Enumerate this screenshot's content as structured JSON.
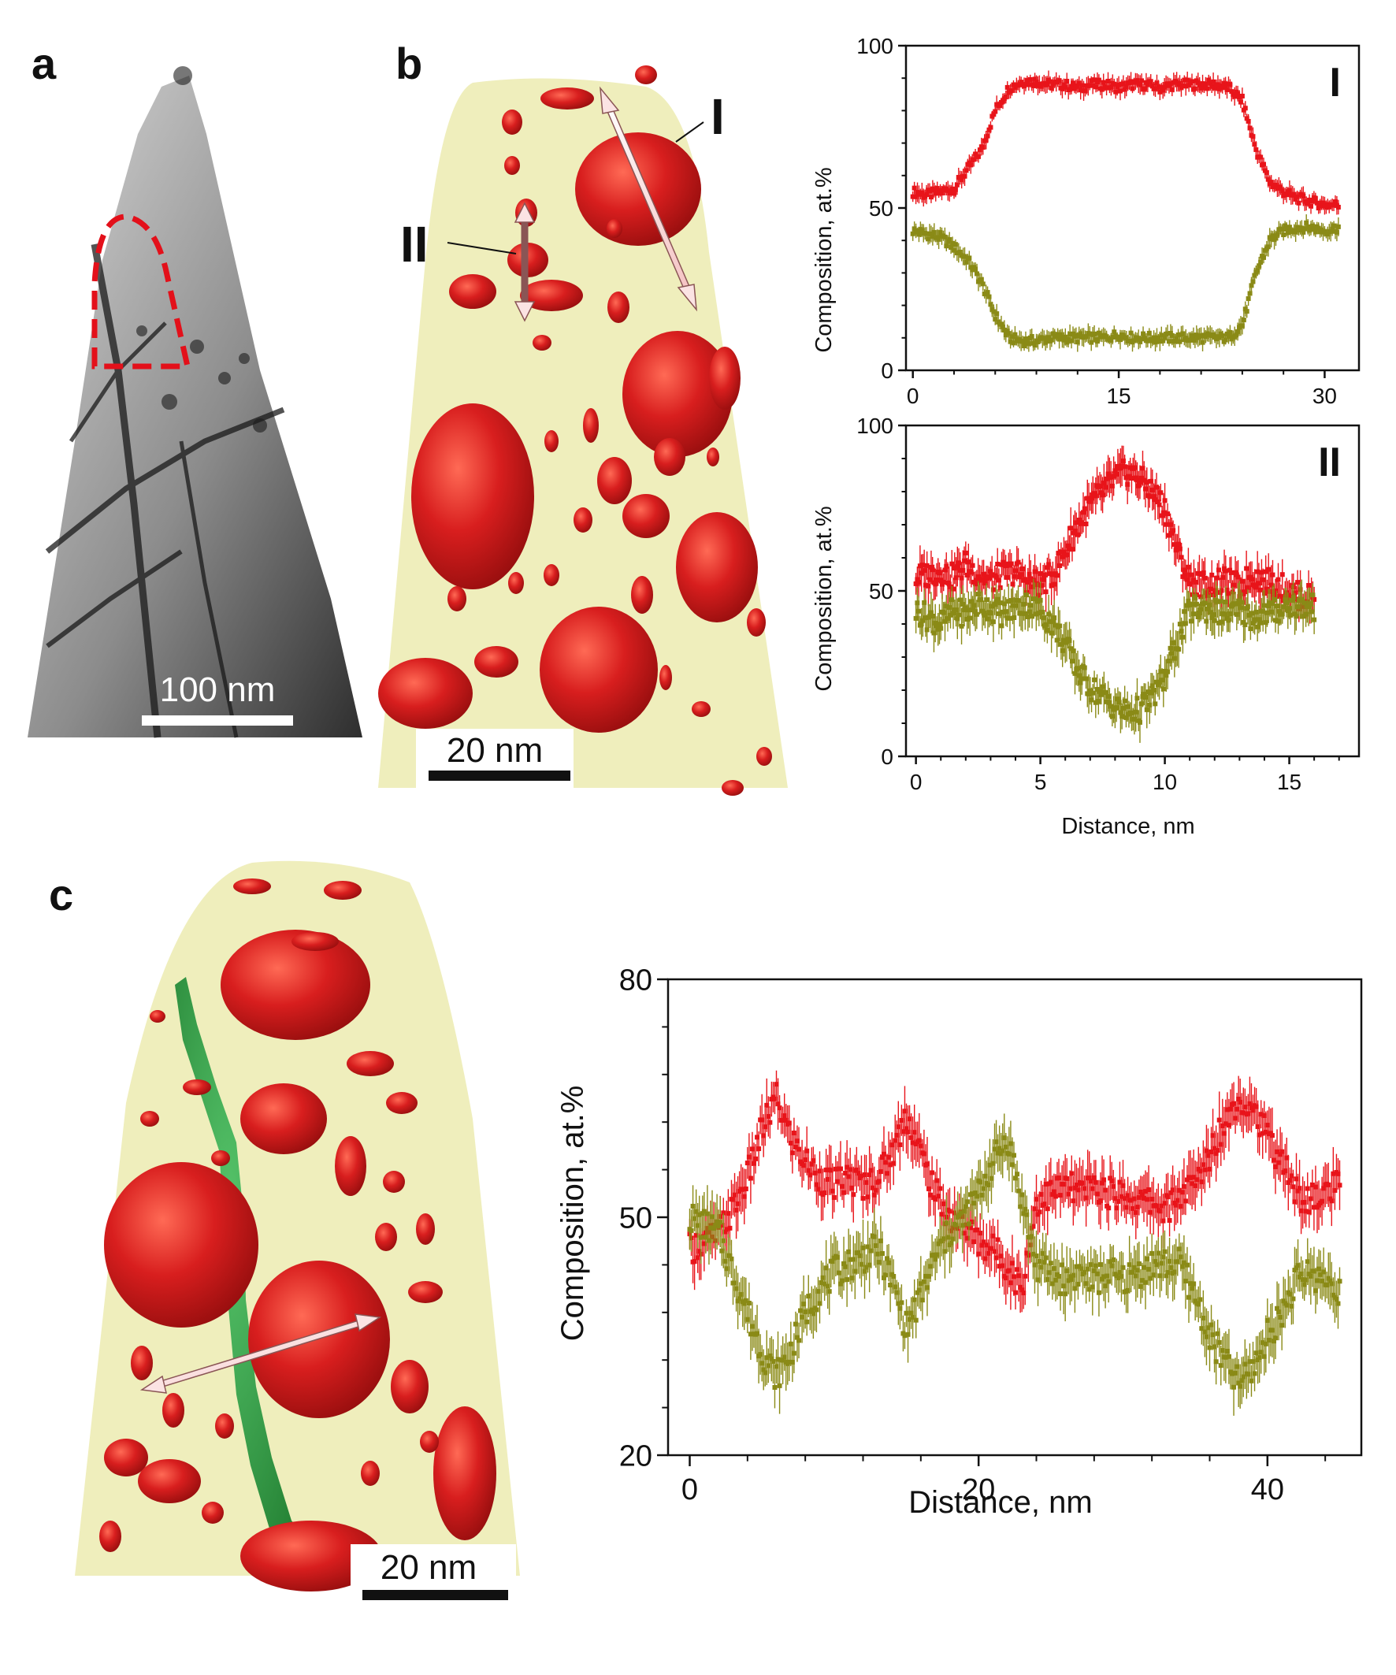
{
  "figure": {
    "panel_labels": {
      "a": "a",
      "b": "b",
      "c": "c"
    },
    "scale_bars": {
      "a": "100 nm",
      "b": "20 nm",
      "c": "20 nm"
    },
    "profile_labels": {
      "I": "I",
      "II": "II"
    },
    "colors": {
      "red": "#e8141a",
      "olive": "#8a8a16",
      "matrix": "#ecebb0",
      "precipitate": "#c8181c",
      "green_boundary": "#2a9a3a",
      "roi_dash": "#e3101a"
    }
  },
  "chart_data": [
    {
      "type": "line",
      "panel": "b-I",
      "label": "I",
      "xlabel": "",
      "ylabel": "Composition, at.%",
      "xlim": [
        -0.5,
        32.5
      ],
      "ylim": [
        0,
        100
      ],
      "xticks": [
        0,
        15,
        30
      ],
      "yticks": [
        0,
        50,
        100
      ],
      "series_colors": [
        "#e8141a",
        "#8a8a16"
      ],
      "series": [
        {
          "x": [
            0,
            1,
            2,
            3,
            4,
            5,
            6,
            7,
            8,
            9,
            10,
            11,
            12,
            13,
            14,
            15,
            16,
            17,
            18,
            19,
            20,
            21,
            22,
            23,
            24,
            25,
            26,
            27,
            28,
            29,
            30,
            31
          ],
          "values": [
            55,
            54,
            55,
            56,
            62,
            68,
            80,
            87,
            89,
            89,
            88,
            88,
            87,
            88,
            88,
            87,
            88,
            88,
            87,
            88,
            88,
            88,
            88,
            87,
            83,
            68,
            58,
            55,
            53,
            52,
            51,
            51
          ]
        },
        {
          "x": [
            0,
            1,
            2,
            3,
            4,
            5,
            6,
            7,
            8,
            9,
            10,
            11,
            12,
            13,
            14,
            15,
            16,
            17,
            18,
            19,
            20,
            21,
            22,
            23,
            24,
            25,
            26,
            27,
            28,
            29,
            30,
            31
          ],
          "values": [
            43,
            42,
            41,
            38,
            34,
            27,
            17,
            10,
            9,
            9,
            10,
            10,
            10,
            10,
            10,
            11,
            10,
            10,
            10,
            10,
            10,
            10,
            10,
            10,
            14,
            30,
            40,
            43,
            44,
            44,
            43,
            44
          ]
        }
      ]
    },
    {
      "type": "line",
      "panel": "b-II",
      "label": "II",
      "xlabel": "Distance, nm",
      "ylabel": "Composition, at.%",
      "xlim": [
        -0.4,
        17.8
      ],
      "ylim": [
        0,
        100
      ],
      "xticks": [
        0,
        5,
        10,
        15
      ],
      "yticks": [
        0,
        50,
        100
      ],
      "series_colors": [
        "#e8141a",
        "#8a8a16"
      ],
      "series": [
        {
          "x": [
            0,
            0.5,
            1,
            1.5,
            2,
            2.5,
            3,
            3.5,
            4,
            4.5,
            5,
            5.5,
            6,
            6.5,
            7,
            7.5,
            8,
            8.5,
            9,
            9.5,
            10,
            10.5,
            11,
            11.5,
            12,
            12.5,
            13,
            13.5,
            14,
            14.5,
            15,
            15.5,
            16
          ],
          "values": [
            54,
            55,
            56,
            54,
            58,
            55,
            53,
            55,
            56,
            53,
            52,
            55,
            62,
            70,
            76,
            80,
            84,
            86,
            84,
            80,
            75,
            62,
            53,
            52,
            52,
            53,
            51,
            55,
            53,
            52,
            50,
            48,
            48
          ]
        },
        {
          "x": [
            0,
            0.5,
            1,
            1.5,
            2,
            2.5,
            3,
            3.5,
            4,
            4.5,
            5,
            5.5,
            6,
            6.5,
            7,
            7.5,
            8,
            8.5,
            9,
            9.5,
            10,
            10.5,
            11,
            11.5,
            12,
            12.5,
            13,
            13.5,
            14,
            14.5,
            15,
            15.5,
            16
          ],
          "values": [
            44,
            42,
            40,
            44,
            43,
            46,
            45,
            43,
            45,
            46,
            44,
            40,
            34,
            26,
            21,
            18,
            15,
            13,
            14,
            18,
            24,
            35,
            44,
            45,
            44,
            43,
            44,
            42,
            43,
            44,
            46,
            45,
            45
          ]
        }
      ]
    },
    {
      "type": "line",
      "panel": "c",
      "xlabel": "Distance, nm",
      "ylabel": "Composition, at.%",
      "xlim": [
        -1.5,
        46.5
      ],
      "ylim": [
        20,
        80
      ],
      "xticks": [
        0,
        20,
        40
      ],
      "yticks": [
        20,
        50,
        80
      ],
      "series_colors": [
        "#e8141a",
        "#8a8a16"
      ],
      "series": [
        {
          "x": [
            0,
            1,
            2,
            3,
            4,
            5,
            6,
            7,
            8,
            9,
            10,
            11,
            12,
            13,
            14,
            15,
            16,
            17,
            18,
            19,
            20,
            21,
            22,
            23,
            24,
            25,
            26,
            27,
            28,
            29,
            30,
            31,
            32,
            33,
            34,
            35,
            36,
            37,
            38,
            39,
            40,
            41,
            42,
            43,
            44,
            45
          ],
          "values": [
            46,
            47,
            48,
            51,
            55,
            61,
            65,
            60,
            57,
            55,
            54,
            55,
            54,
            55,
            58,
            63,
            58,
            53,
            50,
            49,
            47,
            46,
            44,
            41,
            52,
            53,
            54,
            53,
            54,
            53,
            53,
            52,
            52,
            51,
            53,
            54,
            58,
            62,
            65,
            64,
            60,
            57,
            53,
            52,
            53,
            54
          ]
        },
        {
          "x": [
            0,
            1,
            2,
            3,
            4,
            5,
            6,
            7,
            8,
            9,
            10,
            11,
            12,
            13,
            14,
            15,
            16,
            17,
            18,
            19,
            20,
            21,
            22,
            23,
            24,
            25,
            26,
            27,
            28,
            29,
            30,
            31,
            32,
            33,
            34,
            35,
            36,
            37,
            38,
            39,
            40,
            41,
            42,
            43,
            44,
            45
          ],
          "values": [
            50,
            49,
            48,
            43,
            38,
            33,
            30,
            33,
            38,
            41,
            43,
            44,
            45,
            46,
            42,
            36,
            40,
            45,
            48,
            50,
            53,
            57,
            60,
            52,
            44,
            43,
            42,
            43,
            42,
            43,
            42,
            43,
            44,
            44,
            44,
            40,
            35,
            32,
            29,
            31,
            35,
            38,
            42,
            43,
            42,
            41
          ]
        }
      ]
    }
  ]
}
